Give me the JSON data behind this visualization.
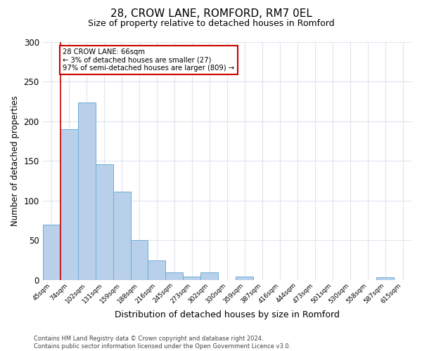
{
  "title": "28, CROW LANE, ROMFORD, RM7 0EL",
  "subtitle": "Size of property relative to detached houses in Romford",
  "xlabel": "Distribution of detached houses by size in Romford",
  "ylabel": "Number of detached properties",
  "bin_labels": [
    "45sqm",
    "74sqm",
    "102sqm",
    "131sqm",
    "159sqm",
    "188sqm",
    "216sqm",
    "245sqm",
    "273sqm",
    "302sqm",
    "330sqm",
    "359sqm",
    "387sqm",
    "416sqm",
    "444sqm",
    "473sqm",
    "501sqm",
    "530sqm",
    "558sqm",
    "587sqm",
    "615sqm"
  ],
  "bar_values": [
    70,
    190,
    224,
    146,
    111,
    50,
    25,
    10,
    4,
    10,
    0,
    4,
    0,
    0,
    0,
    0,
    0,
    0,
    0,
    3,
    0
  ],
  "bar_color": "#b8d0ea",
  "bar_edgecolor": "#6baed6",
  "ylim": [
    0,
    300
  ],
  "yticks": [
    0,
    50,
    100,
    150,
    200,
    250,
    300
  ],
  "property_line_x": 1,
  "annotation_line1": "28 CROW LANE: 66sqm",
  "annotation_line2": "← 3% of detached houses are smaller (27)",
  "annotation_line3": "97% of semi-detached houses are larger (809) →",
  "annotation_box_color": "#cc0000",
  "footer_line1": "Contains HM Land Registry data © Crown copyright and database right 2024.",
  "footer_line2": "Contains public sector information licensed under the Open Government Licence v3.0.",
  "bg_color": "#ffffff",
  "grid_color": "#dde4ef"
}
